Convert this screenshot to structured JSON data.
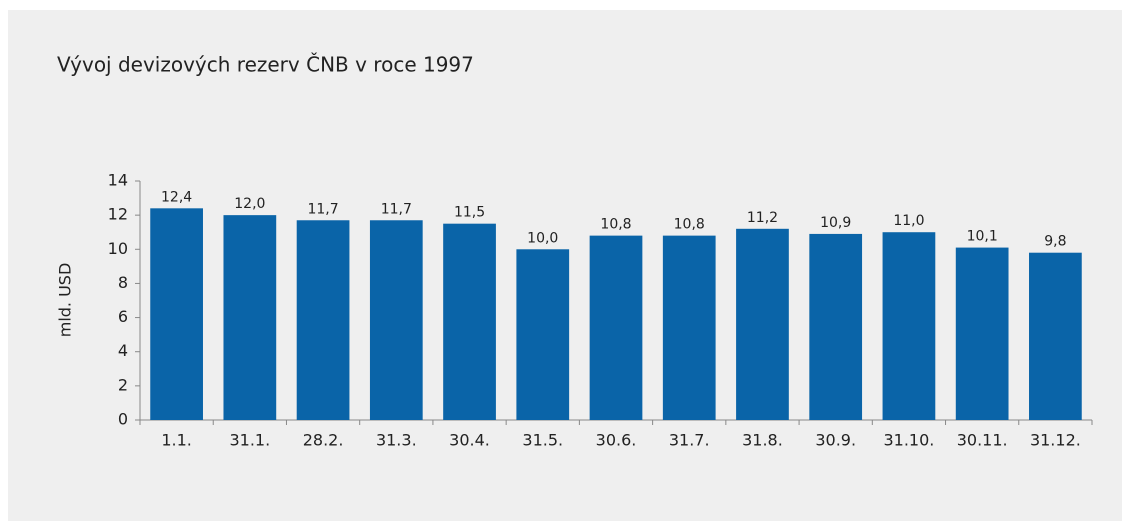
{
  "chart_data": {
    "type": "bar",
    "title": "Vývoj devizových rezerv ČNB v roce 1997",
    "y_label": "mld. USD",
    "categories": [
      "1.1.",
      "31.1.",
      "28.2.",
      "31.3.",
      "30.4.",
      "31.5.",
      "30.6.",
      "31.7.",
      "31.8.",
      "30.9.",
      "31.10.",
      "30.11.",
      "31.12."
    ],
    "values": [
      12.4,
      12.0,
      11.7,
      11.7,
      11.5,
      10.0,
      10.8,
      10.8,
      11.2,
      10.9,
      11.0,
      10.1,
      9.8
    ],
    "value_labels": [
      "12,4",
      "12,0",
      "11,7",
      "11,7",
      "11,5",
      "10,0",
      "10,8",
      "10,8",
      "11,2",
      "10,9",
      "11,0",
      "10,1",
      "9,8"
    ],
    "color": "#0a64a8",
    "ylim": [
      0,
      14
    ],
    "yticks": [
      0,
      2,
      4,
      6,
      8,
      10,
      12,
      14
    ],
    "grid": false
  }
}
